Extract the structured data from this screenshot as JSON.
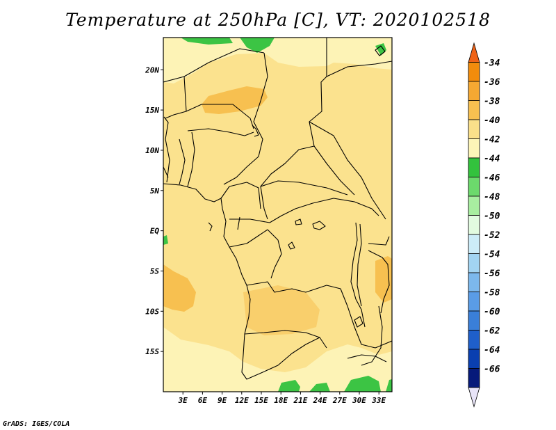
{
  "title": "Temperature at 250hPa [C], VT: 2020102518",
  "credit": "GrADS: IGES/COLA",
  "map": {
    "lon_range": [
      0,
      35
    ],
    "lat_range": [
      -20,
      24
    ],
    "lon_ticks": [
      "3E",
      "6E",
      "9E",
      "12E",
      "15E",
      "18E",
      "21E",
      "24E",
      "27E",
      "30E",
      "33E"
    ],
    "lat_ticks": [
      "20N",
      "15N",
      "10N",
      "5N",
      "EQ",
      "5S",
      "10S",
      "15S"
    ]
  },
  "colorbar": {
    "labels": [
      "-34",
      "-36",
      "-38",
      "-40",
      "-42",
      "-44",
      "-46",
      "-48",
      "-50",
      "-52",
      "-54",
      "-56",
      "-58",
      "-60",
      "-62",
      "-64",
      "-66"
    ],
    "colors": [
      "#f06418",
      "#f28c0c",
      "#f5a832",
      "#f7c050",
      "#fae08a",
      "#fdf5b8",
      "#33c23d",
      "#6cd96c",
      "#a8eea0",
      "#e2fbe0",
      "#ccecf8",
      "#a2d4f2",
      "#7cb8ec",
      "#5a9ce6",
      "#3a7fd8",
      "#1f5fca",
      "#0a3fb0",
      "#061a7a",
      "#e8e4f8"
    ]
  }
}
